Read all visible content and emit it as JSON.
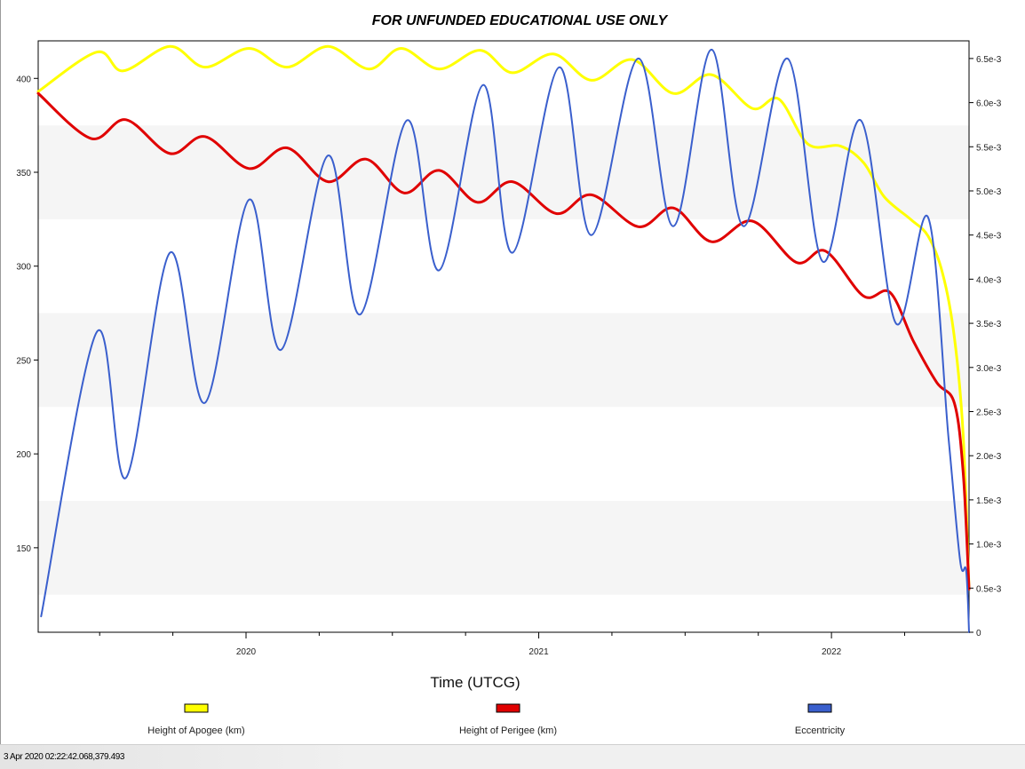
{
  "status_bar": {
    "text": "3 Apr 2020 02:22:42.068,379.493"
  },
  "chart_data": {
    "type": "line",
    "title": "FOR UNFUNDED EDUCATIONAL USE ONLY",
    "xlabel": "Time (UTCG)",
    "ylabel_left": "",
    "ylabel_right": "",
    "xlim": [
      2019.29,
      2022.47
    ],
    "ylim_left": [
      105,
      420
    ],
    "ylim_right": [
      0,
      0.0067
    ],
    "x_ticks": [
      {
        "value": 2020,
        "label": "2020"
      },
      {
        "value": 2021,
        "label": "2021"
      },
      {
        "value": 2022,
        "label": "2022"
      }
    ],
    "y_left_ticks": [
      {
        "value": 150,
        "label": "150"
      },
      {
        "value": 200,
        "label": "200"
      },
      {
        "value": 250,
        "label": "250"
      },
      {
        "value": 300,
        "label": "300"
      },
      {
        "value": 350,
        "label": "350"
      },
      {
        "value": 400,
        "label": "400"
      }
    ],
    "y_right_ticks": [
      {
        "value": 0,
        "label": "0"
      },
      {
        "value": 0.0005,
        "label": "0.5e-3"
      },
      {
        "value": 0.001,
        "label": "1.0e-3"
      },
      {
        "value": 0.0015,
        "label": "1.5e-3"
      },
      {
        "value": 0.002,
        "label": "2.0e-3"
      },
      {
        "value": 0.0025,
        "label": "2.5e-3"
      },
      {
        "value": 0.003,
        "label": "3.0e-3"
      },
      {
        "value": 0.0035,
        "label": "3.5e-3"
      },
      {
        "value": 0.004,
        "label": "4.0e-3"
      },
      {
        "value": 0.0045,
        "label": "4.5e-3"
      },
      {
        "value": 0.005,
        "label": "5.0e-3"
      },
      {
        "value": 0.0055,
        "label": "5.5e-3"
      },
      {
        "value": 0.006,
        "label": "6.0e-3"
      },
      {
        "value": 0.0065,
        "label": "6.5e-3"
      }
    ],
    "bands": true,
    "legend_placement": "bottom",
    "series": [
      {
        "name": "Height of Apogee (km)",
        "axis": "left",
        "color": "#ffff00",
        "x": [
          2019.29,
          2019.49,
          2019.58,
          2019.74,
          2019.86,
          2020.01,
          2020.14,
          2020.28,
          2020.42,
          2020.53,
          2020.66,
          2020.8,
          2020.91,
          2021.05,
          2021.18,
          2021.32,
          2021.46,
          2021.59,
          2021.73,
          2021.82,
          2021.92,
          2022.03,
          2022.11,
          2022.18,
          2022.27,
          2022.33,
          2022.38,
          2022.42,
          2022.45,
          2022.47
        ],
        "y": [
          393,
          414,
          404,
          417,
          406,
          416,
          406,
          417,
          405,
          416,
          405,
          415,
          403,
          413,
          399,
          410,
          392,
          402,
          384,
          389,
          365,
          364,
          355,
          337,
          325,
          316,
          296,
          262,
          210,
          128
        ]
      },
      {
        "name": "Height of Perigee (km)",
        "axis": "left",
        "color": "#e00000",
        "x": [
          2019.29,
          2019.47,
          2019.59,
          2019.74,
          2019.86,
          2020.01,
          2020.14,
          2020.28,
          2020.41,
          2020.54,
          2020.66,
          2020.79,
          2020.91,
          2021.06,
          2021.18,
          2021.34,
          2021.46,
          2021.59,
          2021.73,
          2021.88,
          2021.98,
          2022.11,
          2022.2,
          2022.28,
          2022.36,
          2022.42,
          2022.45,
          2022.47
        ],
        "y": [
          392,
          368,
          378,
          360,
          369,
          352,
          363,
          345,
          357,
          339,
          351,
          334,
          345,
          328,
          338,
          321,
          331,
          313,
          324,
          302,
          308,
          284,
          286,
          260,
          238,
          227,
          190,
          128
        ]
      },
      {
        "name": "Eccentricity",
        "axis": "right",
        "color": "#3a5fcd",
        "x": [
          2019.3,
          2019.49,
          2019.59,
          2019.74,
          2019.86,
          2020.01,
          2020.12,
          2020.28,
          2020.39,
          2020.55,
          2020.66,
          2020.81,
          2020.91,
          2021.07,
          2021.18,
          2021.34,
          2021.46,
          2021.59,
          2021.7,
          2021.85,
          2021.97,
          2022.1,
          2022.22,
          2022.33,
          2022.4,
          2022.44,
          2022.46,
          2022.47
        ],
        "y": [
          0.00018,
          0.0034,
          0.00175,
          0.0043,
          0.0026,
          0.0049,
          0.0032,
          0.0054,
          0.0036,
          0.0058,
          0.0041,
          0.0062,
          0.0043,
          0.0064,
          0.0045,
          0.0065,
          0.0046,
          0.0066,
          0.0046,
          0.0065,
          0.0042,
          0.0058,
          0.0035,
          0.0047,
          0.0022,
          0.0008,
          0.0007,
          0.0
        ]
      }
    ]
  }
}
